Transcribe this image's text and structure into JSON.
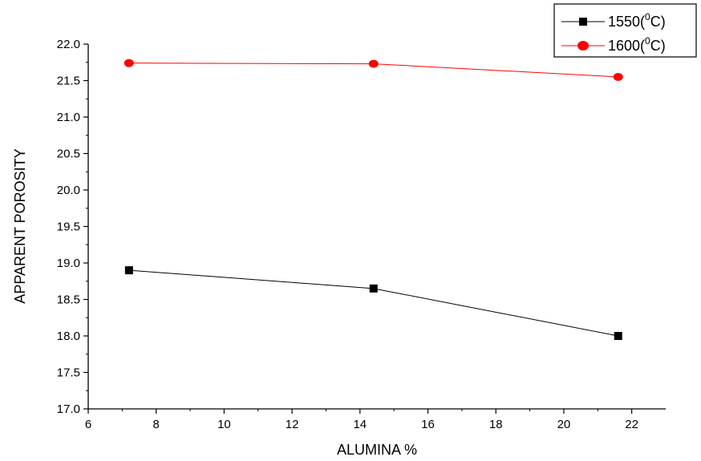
{
  "chart_data": {
    "type": "line",
    "xlabel": "ALUMINA %",
    "ylabel": "APPARENT POROSITY",
    "xlim": [
      6,
      23
    ],
    "ylim": [
      17.0,
      22.0
    ],
    "x_ticks": [
      "6",
      "8",
      "10",
      "12",
      "14",
      "16",
      "18",
      "20",
      "22"
    ],
    "y_ticks": [
      "17.0",
      "17.5",
      "18.0",
      "18.5",
      "19.0",
      "19.5",
      "20.0",
      "20.5",
      "21.0",
      "21.5",
      "22.0"
    ],
    "grid": false,
    "legend_position": "top-right",
    "series": [
      {
        "name": "1550(",
        "name_sup": "0",
        "name_suffix": "C)",
        "marker": "square",
        "color": "#000000",
        "x": [
          7.2,
          14.4,
          21.6
        ],
        "y": [
          18.9,
          18.65,
          18.0
        ]
      },
      {
        "name": "1600(",
        "name_sup": "0",
        "name_suffix": "C)",
        "marker": "circle",
        "color": "#ff0000",
        "x": [
          7.2,
          14.4,
          21.6
        ],
        "y": [
          21.74,
          21.73,
          21.55
        ]
      }
    ]
  }
}
